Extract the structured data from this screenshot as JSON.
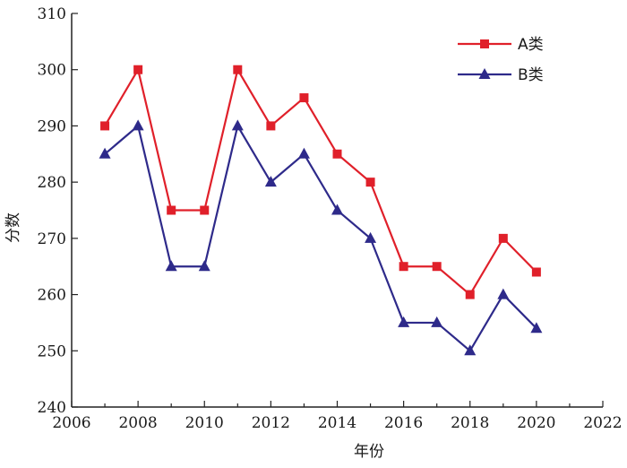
{
  "chart_data": {
    "type": "line",
    "title": "",
    "xlabel": "年份",
    "ylabel": "分数",
    "xlim": [
      2006,
      2022
    ],
    "ylim": [
      240,
      310
    ],
    "xticks": [
      2006,
      2008,
      2010,
      2012,
      2014,
      2016,
      2018,
      2020,
      2022
    ],
    "yticks": [
      240,
      250,
      260,
      270,
      280,
      290,
      300,
      310
    ],
    "grid": false,
    "legend_position": "top-right",
    "x": [
      2007,
      2008,
      2009,
      2010,
      2011,
      2012,
      2013,
      2014,
      2015,
      2016,
      2017,
      2018,
      2019,
      2020
    ],
    "series": [
      {
        "name": "A类",
        "color": "#e0202a",
        "marker": "square",
        "values": [
          290,
          300,
          275,
          275,
          300,
          290,
          295,
          285,
          280,
          265,
          265,
          260,
          270,
          264
        ]
      },
      {
        "name": "B类",
        "color": "#2e2a8a",
        "marker": "triangle",
        "values": [
          285,
          290,
          265,
          265,
          290,
          280,
          285,
          275,
          270,
          255,
          255,
          250,
          260,
          254
        ]
      }
    ]
  }
}
